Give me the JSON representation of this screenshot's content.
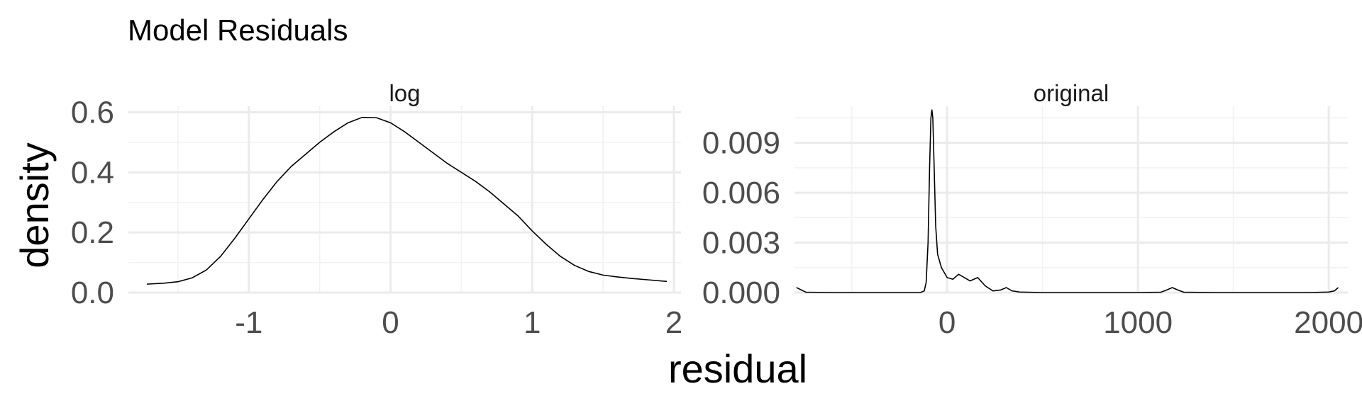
{
  "chart_data": {
    "type": "area",
    "title": "Model Residuals",
    "xlabel": "residual",
    "ylabel": "density",
    "grid": true,
    "panels": [
      {
        "name": "log",
        "xlim": [
          -1.85,
          2.05
        ],
        "ylim": [
          0,
          0.62
        ],
        "x_ticks": [
          -1,
          0,
          1,
          2
        ],
        "x_tick_labels": [
          "-1",
          "0",
          "1",
          "2"
        ],
        "y_ticks": [
          0,
          0.2,
          0.4,
          0.6
        ],
        "y_tick_labels": [
          "0.0",
          "0.2",
          "0.4",
          "0.6"
        ],
        "points": [
          [
            -1.72,
            0.028
          ],
          [
            -1.6,
            0.031
          ],
          [
            -1.5,
            0.036
          ],
          [
            -1.4,
            0.049
          ],
          [
            -1.3,
            0.075
          ],
          [
            -1.2,
            0.12
          ],
          [
            -1.1,
            0.18
          ],
          [
            -1.0,
            0.245
          ],
          [
            -0.9,
            0.31
          ],
          [
            -0.8,
            0.37
          ],
          [
            -0.7,
            0.42
          ],
          [
            -0.6,
            0.46
          ],
          [
            -0.5,
            0.5
          ],
          [
            -0.4,
            0.535
          ],
          [
            -0.3,
            0.565
          ],
          [
            -0.2,
            0.583
          ],
          [
            -0.1,
            0.582
          ],
          [
            0.0,
            0.565
          ],
          [
            0.1,
            0.535
          ],
          [
            0.2,
            0.5
          ],
          [
            0.3,
            0.465
          ],
          [
            0.4,
            0.43
          ],
          [
            0.5,
            0.4
          ],
          [
            0.6,
            0.37
          ],
          [
            0.7,
            0.335
          ],
          [
            0.8,
            0.295
          ],
          [
            0.9,
            0.255
          ],
          [
            1.0,
            0.205
          ],
          [
            1.1,
            0.16
          ],
          [
            1.2,
            0.12
          ],
          [
            1.3,
            0.09
          ],
          [
            1.4,
            0.07
          ],
          [
            1.5,
            0.058
          ],
          [
            1.6,
            0.052
          ],
          [
            1.7,
            0.047
          ],
          [
            1.8,
            0.043
          ],
          [
            1.95,
            0.037
          ]
        ]
      },
      {
        "name": "original",
        "xlim": [
          -800,
          2100
        ],
        "ylim": [
          0,
          0.0112
        ],
        "x_ticks": [
          0,
          1000,
          2000
        ],
        "x_tick_labels": [
          "0",
          "1000",
          "2000"
        ],
        "y_ticks": [
          0,
          0.003,
          0.006,
          0.009
        ],
        "y_tick_labels": [
          "0.000",
          "0.003",
          "0.006",
          "0.009"
        ],
        "points": [
          [
            -790,
            0.0003
          ],
          [
            -740,
            2e-05
          ],
          [
            -600,
            0.0
          ],
          [
            -300,
            0.0
          ],
          [
            -140,
            0.0
          ],
          [
            -120,
            0.0001
          ],
          [
            -110,
            0.0006
          ],
          [
            -100,
            0.003
          ],
          [
            -92,
            0.0075
          ],
          [
            -85,
            0.0105
          ],
          [
            -80,
            0.011
          ],
          [
            -75,
            0.0105
          ],
          [
            -68,
            0.0075
          ],
          [
            -60,
            0.004
          ],
          [
            -50,
            0.0023
          ],
          [
            -30,
            0.0015
          ],
          [
            0,
            0.0009
          ],
          [
            30,
            0.0008
          ],
          [
            60,
            0.0011
          ],
          [
            90,
            0.0009
          ],
          [
            120,
            0.0007
          ],
          [
            160,
            0.0009
          ],
          [
            200,
            0.0004
          ],
          [
            240,
            0.0001
          ],
          [
            280,
            0.00015
          ],
          [
            310,
            0.0003
          ],
          [
            340,
            0.0001
          ],
          [
            380,
            3e-05
          ],
          [
            500,
            0.0
          ],
          [
            1000,
            0.0
          ],
          [
            1120,
            2e-05
          ],
          [
            1150,
            0.00015
          ],
          [
            1180,
            0.0003
          ],
          [
            1210,
            0.00015
          ],
          [
            1240,
            2e-05
          ],
          [
            1400,
            0.0
          ],
          [
            1900,
            0.0
          ],
          [
            2000,
            3e-05
          ],
          [
            2030,
            0.0001
          ],
          [
            2050,
            0.0003
          ]
        ]
      }
    ]
  }
}
